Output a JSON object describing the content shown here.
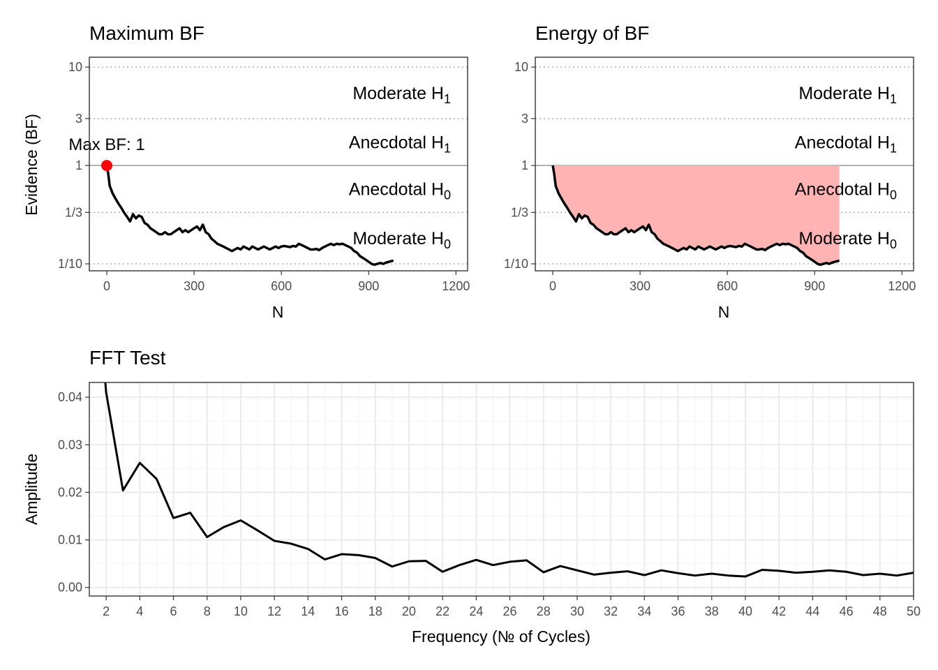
{
  "chart_data": [
    {
      "type": "line",
      "title": "Maximum BF",
      "xlabel": "N",
      "ylabel": "Evidence (BF)",
      "x_ticks": [
        0,
        300,
        600,
        900,
        1200
      ],
      "xlim": [
        -60,
        1240
      ],
      "y_scale": "log",
      "y_ticks": [
        0.1,
        0.3333,
        1,
        3,
        10
      ],
      "y_tick_labels": [
        "1/10",
        "1/3",
        "1",
        "3",
        "10"
      ],
      "ylim": [
        0.085,
        12.6
      ],
      "reference_line": 1,
      "dotted_lines": [
        0.1,
        0.3333,
        3,
        10
      ],
      "grid": false,
      "zone_labels": [
        {
          "text": "Moderate H",
          "sub": "1",
          "y": 5.48
        },
        {
          "text": "Anecdotal H",
          "sub": "1",
          "y": 1.73
        },
        {
          "text": "Anecdotal H",
          "sub": "0",
          "y": 0.578
        },
        {
          "text": "Moderate H",
          "sub": "0",
          "y": 0.183
        }
      ],
      "annotation": {
        "label": "Max BF: 1",
        "x": 0,
        "y": 1,
        "color": "#ff0000"
      },
      "series": [
        {
          "x": [
            0,
            5,
            10,
            15,
            20,
            30,
            40,
            50,
            60,
            70,
            80,
            90,
            100,
            110,
            120,
            130,
            140,
            150,
            160,
            170,
            180,
            190,
            200,
            210,
            220,
            230,
            240,
            250,
            260,
            270,
            280,
            290,
            300,
            310,
            320,
            330,
            340,
            350,
            360,
            370,
            380,
            390,
            400,
            410,
            420,
            430,
            440,
            450,
            460,
            470,
            480,
            490,
            500,
            510,
            520,
            530,
            540,
            550,
            560,
            570,
            580,
            590,
            600,
            610,
            620,
            630,
            640,
            650,
            660,
            670,
            680,
            690,
            700,
            710,
            720,
            730,
            740,
            750,
            760,
            770,
            780,
            790,
            800,
            810,
            820,
            830,
            840,
            850,
            860,
            870,
            880,
            890,
            900,
            910,
            920,
            930,
            940,
            950,
            960,
            970,
            985
          ],
          "values": [
            1.0,
            0.82,
            0.62,
            0.57,
            0.52,
            0.46,
            0.41,
            0.37,
            0.33,
            0.3,
            0.27,
            0.32,
            0.29,
            0.31,
            0.3,
            0.26,
            0.25,
            0.23,
            0.22,
            0.21,
            0.2,
            0.2,
            0.21,
            0.2,
            0.2,
            0.21,
            0.22,
            0.23,
            0.21,
            0.22,
            0.21,
            0.22,
            0.23,
            0.24,
            0.22,
            0.25,
            0.21,
            0.2,
            0.18,
            0.17,
            0.16,
            0.155,
            0.15,
            0.145,
            0.14,
            0.135,
            0.14,
            0.145,
            0.14,
            0.15,
            0.145,
            0.14,
            0.15,
            0.145,
            0.14,
            0.145,
            0.15,
            0.145,
            0.14,
            0.145,
            0.15,
            0.145,
            0.15,
            0.152,
            0.15,
            0.148,
            0.152,
            0.15,
            0.16,
            0.155,
            0.15,
            0.145,
            0.14,
            0.14,
            0.142,
            0.138,
            0.145,
            0.15,
            0.155,
            0.16,
            0.155,
            0.16,
            0.158,
            0.16,
            0.155,
            0.15,
            0.145,
            0.135,
            0.13,
            0.12,
            0.115,
            0.11,
            0.105,
            0.1,
            0.098,
            0.1,
            0.102,
            0.1,
            0.103,
            0.105,
            0.108
          ]
        }
      ]
    },
    {
      "type": "area",
      "title": "Energy of BF",
      "xlabel": "N",
      "ylabel": "",
      "x_ticks": [
        0,
        300,
        600,
        900,
        1200
      ],
      "xlim": [
        -60,
        1240
      ],
      "y_scale": "log",
      "y_ticks": [
        0.1,
        0.3333,
        1,
        3,
        10
      ],
      "y_tick_labels": [
        "1/10",
        "1/3",
        "1",
        "3",
        "10"
      ],
      "ylim": [
        0.085,
        12.6
      ],
      "reference_line": 1,
      "dotted_lines": [
        0.1,
        0.3333,
        3,
        10
      ],
      "fill_between": {
        "y": 1,
        "color": "#ffb3b3"
      },
      "grid": false,
      "zone_labels": [
        {
          "text": "Moderate H",
          "sub": "1",
          "y": 5.48
        },
        {
          "text": "Anecdotal H",
          "sub": "1",
          "y": 1.73
        },
        {
          "text": "Anecdotal H",
          "sub": "0",
          "y": 0.578
        },
        {
          "text": "Moderate H",
          "sub": "0",
          "y": 0.183
        }
      ],
      "series_ref": 0
    },
    {
      "type": "line",
      "title": "FFT Test",
      "xlabel": "Frequency (№ of Cycles)",
      "ylabel": "Amplitude",
      "x_ticks": [
        2,
        4,
        6,
        8,
        10,
        12,
        14,
        16,
        18,
        20,
        22,
        24,
        26,
        28,
        30,
        32,
        34,
        36,
        38,
        40,
        42,
        44,
        46,
        48,
        50
      ],
      "xlim": [
        1,
        50
      ],
      "y_ticks": [
        0.0,
        0.01,
        0.02,
        0.03,
        0.04
      ],
      "y_tick_labels": [
        "0.00",
        "0.01",
        "0.02",
        "0.03",
        "0.04"
      ],
      "ylim": [
        -0.0018,
        0.0431
      ],
      "grid": true,
      "series": [
        {
          "x": [
            1.95,
            2,
            3,
            4,
            5,
            6,
            7,
            8,
            9,
            10,
            11,
            12,
            13,
            14,
            15,
            16,
            17,
            18,
            19,
            20,
            21,
            22,
            23,
            24,
            25,
            26,
            27,
            28,
            29,
            30,
            31,
            32,
            33,
            34,
            35,
            36,
            37,
            38,
            39,
            40,
            41,
            42,
            43,
            44,
            45,
            46,
            47,
            48,
            49,
            50
          ],
          "values": [
            0.0431,
            0.041,
            0.0204,
            0.0262,
            0.0228,
            0.0146,
            0.0157,
            0.0106,
            0.0127,
            0.0141,
            0.012,
            0.0098,
            0.0092,
            0.0081,
            0.0059,
            0.007,
            0.0068,
            0.0062,
            0.0044,
            0.0055,
            0.0056,
            0.0033,
            0.0047,
            0.0058,
            0.0047,
            0.0054,
            0.0057,
            0.0032,
            0.0045,
            0.0036,
            0.0027,
            0.0031,
            0.0034,
            0.0026,
            0.0036,
            0.003,
            0.0025,
            0.0029,
            0.0025,
            0.0023,
            0.0037,
            0.0035,
            0.0031,
            0.0033,
            0.0036,
            0.0033,
            0.0026,
            0.0029,
            0.0025,
            0.0031
          ]
        }
      ]
    }
  ]
}
